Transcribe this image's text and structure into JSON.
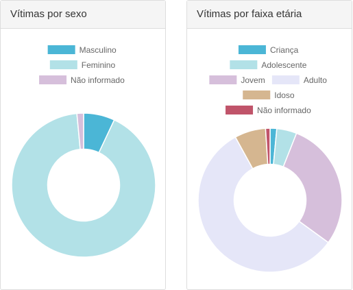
{
  "panels": [
    {
      "title": "Vítimas por sexo"
    },
    {
      "title": "Vítimas por faixa etária"
    }
  ],
  "chart_data": [
    {
      "type": "pie",
      "title": "Vítimas por sexo",
      "hole": 0.5,
      "legend_position": "top",
      "categories": [
        "Masculino",
        "Feminino",
        "Não informado"
      ],
      "values": [
        7.0,
        91.5,
        1.5
      ],
      "colors": [
        "#4bb6d6",
        "#b2e1e7",
        "#d6bfdb"
      ]
    },
    {
      "type": "pie",
      "title": "Vítimas por faixa etária",
      "hole": 0.5,
      "legend_position": "top",
      "categories": [
        "Criança",
        "Adolescente",
        "Jovem",
        "Adulto",
        "Idoso",
        "Não informado"
      ],
      "values": [
        1.5,
        4.5,
        29.0,
        57.0,
        7.0,
        1.0
      ],
      "colors": [
        "#4bb6d6",
        "#b2e1e7",
        "#d6bfdb",
        "#e5e6f8",
        "#d5b690",
        "#c0546a"
      ]
    }
  ]
}
